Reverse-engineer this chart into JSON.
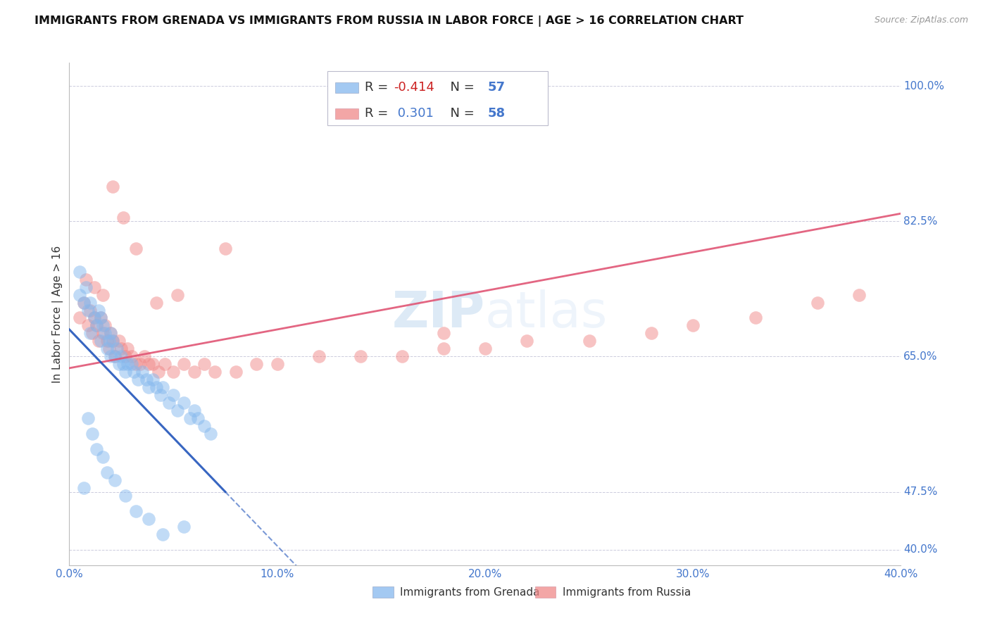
{
  "title": "IMMIGRANTS FROM GRENADA VS IMMIGRANTS FROM RUSSIA IN LABOR FORCE | AGE > 16 CORRELATION CHART",
  "source": "Source: ZipAtlas.com",
  "ylabel": "In Labor Force | Age > 16",
  "xlim": [
    0.0,
    0.4
  ],
  "ylim": [
    0.38,
    1.03
  ],
  "grenada_color": "#85B8EE",
  "russia_color": "#F08888",
  "grenada_line_color": "#2255BB",
  "russia_line_color": "#E05575",
  "watermark_text": "ZIPatlas",
  "legend_grenada_label": "Immigrants from Grenada",
  "legend_russia_label": "Immigrants from Russia",
  "grenada_R": -0.414,
  "grenada_N": 57,
  "russia_R": 0.301,
  "russia_N": 58,
  "grenada_x": [
    0.005,
    0.005,
    0.007,
    0.008,
    0.009,
    0.01,
    0.01,
    0.012,
    0.013,
    0.014,
    0.015,
    0.015,
    0.016,
    0.017,
    0.018,
    0.019,
    0.02,
    0.02,
    0.021,
    0.022,
    0.023,
    0.024,
    0.025,
    0.026,
    0.027,
    0.028,
    0.03,
    0.031,
    0.033,
    0.035,
    0.037,
    0.038,
    0.04,
    0.042,
    0.044,
    0.045,
    0.048,
    0.05,
    0.052,
    0.055,
    0.058,
    0.06,
    0.062,
    0.065,
    0.068,
    0.007,
    0.009,
    0.011,
    0.013,
    0.016,
    0.018,
    0.022,
    0.027,
    0.032,
    0.038,
    0.045,
    0.055
  ],
  "grenada_y": [
    0.73,
    0.76,
    0.72,
    0.74,
    0.71,
    0.72,
    0.68,
    0.7,
    0.69,
    0.71,
    0.7,
    0.67,
    0.69,
    0.68,
    0.66,
    0.67,
    0.68,
    0.65,
    0.67,
    0.65,
    0.66,
    0.64,
    0.65,
    0.64,
    0.63,
    0.64,
    0.64,
    0.63,
    0.62,
    0.63,
    0.62,
    0.61,
    0.62,
    0.61,
    0.6,
    0.61,
    0.59,
    0.6,
    0.58,
    0.59,
    0.57,
    0.58,
    0.57,
    0.56,
    0.55,
    0.48,
    0.57,
    0.55,
    0.53,
    0.52,
    0.5,
    0.49,
    0.47,
    0.45,
    0.44,
    0.42,
    0.43
  ],
  "russia_x": [
    0.005,
    0.007,
    0.009,
    0.01,
    0.011,
    0.012,
    0.013,
    0.014,
    0.015,
    0.016,
    0.017,
    0.018,
    0.019,
    0.02,
    0.021,
    0.022,
    0.024,
    0.025,
    0.027,
    0.028,
    0.03,
    0.032,
    0.034,
    0.036,
    0.038,
    0.04,
    0.043,
    0.046,
    0.05,
    0.055,
    0.06,
    0.065,
    0.07,
    0.08,
    0.09,
    0.1,
    0.12,
    0.14,
    0.16,
    0.18,
    0.2,
    0.22,
    0.25,
    0.28,
    0.3,
    0.33,
    0.36,
    0.38,
    0.008,
    0.012,
    0.016,
    0.021,
    0.026,
    0.032,
    0.042,
    0.052,
    0.075,
    0.18
  ],
  "russia_y": [
    0.7,
    0.72,
    0.69,
    0.71,
    0.68,
    0.7,
    0.69,
    0.67,
    0.7,
    0.68,
    0.69,
    0.67,
    0.66,
    0.68,
    0.67,
    0.65,
    0.67,
    0.66,
    0.65,
    0.66,
    0.65,
    0.64,
    0.64,
    0.65,
    0.64,
    0.64,
    0.63,
    0.64,
    0.63,
    0.64,
    0.63,
    0.64,
    0.63,
    0.63,
    0.64,
    0.64,
    0.65,
    0.65,
    0.65,
    0.66,
    0.66,
    0.67,
    0.67,
    0.68,
    0.69,
    0.7,
    0.72,
    0.73,
    0.75,
    0.74,
    0.73,
    0.87,
    0.83,
    0.79,
    0.72,
    0.73,
    0.79,
    0.68
  ],
  "right_labels": [
    [
      "100.0%",
      1.0
    ],
    [
      "82.5%",
      0.825
    ],
    [
      "65.0%",
      0.65
    ],
    [
      "47.5%",
      0.475
    ],
    [
      "40.0%",
      0.4
    ]
  ],
  "x_ticks": [
    0.0,
    0.1,
    0.2,
    0.3,
    0.4
  ],
  "x_tick_labels": [
    "0.0%",
    "10.0%",
    "20.0%",
    "30.0%",
    "40.0%"
  ]
}
